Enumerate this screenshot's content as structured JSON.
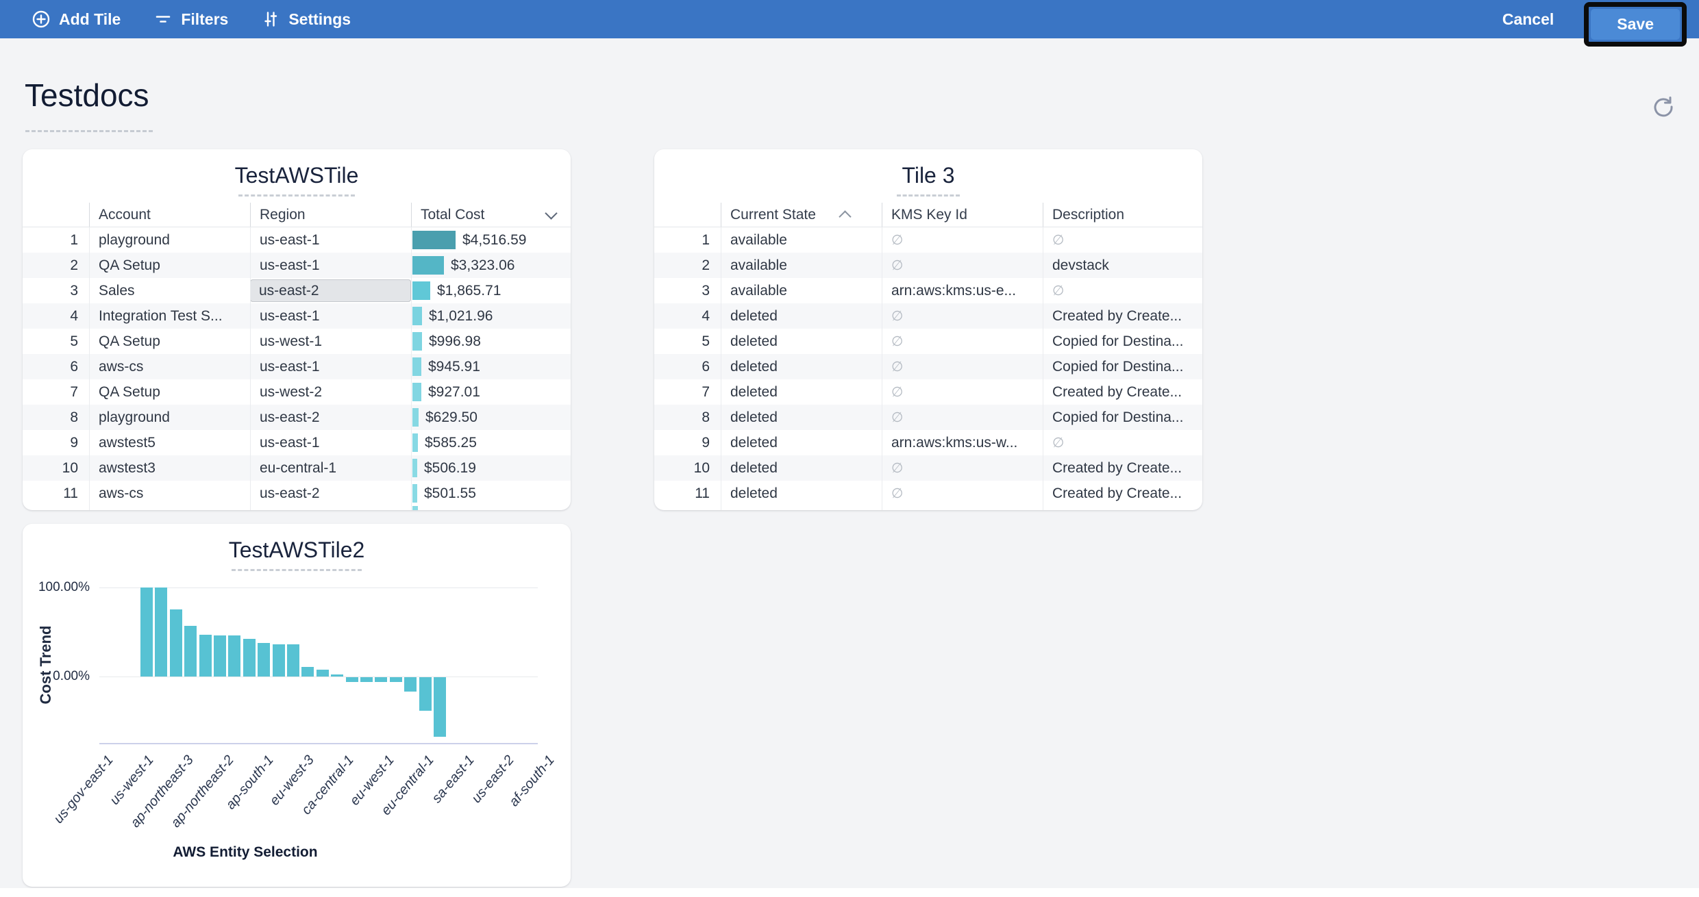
{
  "toolbar": {
    "add_tile": "Add Tile",
    "filters": "Filters",
    "settings": "Settings",
    "cancel": "Cancel",
    "save": "Save"
  },
  "page": {
    "title": "Testdocs"
  },
  "colors": {
    "topbar": "#3a75c4",
    "save_button": "#4b8ad6",
    "page_bg": "#f3f4f6",
    "chart_bar": "#57c2d3",
    "selected_cell_bg": "#e3e5e8"
  },
  "tiles": {
    "tile1": {
      "title": "TestAWSTile",
      "columns": [
        "Account",
        "Region",
        "Total Cost"
      ],
      "sort": {
        "column": "Total Cost",
        "direction": "desc"
      },
      "selected_cell": {
        "row": 3,
        "column": "Region",
        "value": "us-east-2"
      },
      "rows": [
        {
          "n": "1",
          "account": "playground",
          "region": "us-east-1",
          "cost": "$4,516.59",
          "value": 4516.59,
          "bar_color": "#4a9fae"
        },
        {
          "n": "2",
          "account": "QA Setup",
          "region": "us-east-1",
          "cost": "$3,323.06",
          "value": 3323.06,
          "bar_color": "#54b6c6"
        },
        {
          "n": "3",
          "account": "Sales",
          "region": "us-east-2",
          "cost": "$1,865.71",
          "value": 1865.71,
          "bar_color": "#60c8d7"
        },
        {
          "n": "4",
          "account": "Integration Test S...",
          "region": "us-east-1",
          "cost": "$1,021.96",
          "value": 1021.96,
          "bar_color": "#7ad3e0"
        },
        {
          "n": "5",
          "account": "QA Setup",
          "region": "us-west-1",
          "cost": "$996.98",
          "value": 996.98,
          "bar_color": "#7fd5e1"
        },
        {
          "n": "6",
          "account": "aws-cs",
          "region": "us-east-1",
          "cost": "$945.91",
          "value": 945.91,
          "bar_color": "#82d6e2"
        },
        {
          "n": "7",
          "account": "QA Setup",
          "region": "us-west-2",
          "cost": "$927.01",
          "value": 927.01,
          "bar_color": "#82d6e2"
        },
        {
          "n": "8",
          "account": "playground",
          "region": "us-east-2",
          "cost": "$629.50",
          "value": 629.5,
          "bar_color": "#86d8e3"
        },
        {
          "n": "9",
          "account": "awstest5",
          "region": "us-east-1",
          "cost": "$585.25",
          "value": 585.25,
          "bar_color": "#87d9e4"
        },
        {
          "n": "10",
          "account": "awstest3",
          "region": "eu-central-1",
          "cost": "$506.19",
          "value": 506.19,
          "bar_color": "#89dae4"
        },
        {
          "n": "11",
          "account": "aws-cs",
          "region": "us-east-2",
          "cost": "$501.55",
          "value": 501.55,
          "bar_color": "#89dae4"
        }
      ]
    },
    "tile2": {
      "title": "Tile 3",
      "columns": [
        "Current State",
        "KMS Key Id",
        "Description"
      ],
      "sort": {
        "column": "Current State",
        "direction": "asc"
      },
      "null_glyph": "∅",
      "rows": [
        {
          "n": "1",
          "state": "available",
          "kms": null,
          "desc": null
        },
        {
          "n": "2",
          "state": "available",
          "kms": null,
          "desc": "devstack"
        },
        {
          "n": "3",
          "state": "available",
          "kms": "arn:aws:kms:us-e...",
          "desc": null
        },
        {
          "n": "4",
          "state": "deleted",
          "kms": null,
          "desc": "Created by Create..."
        },
        {
          "n": "5",
          "state": "deleted",
          "kms": null,
          "desc": "Copied for Destina..."
        },
        {
          "n": "6",
          "state": "deleted",
          "kms": null,
          "desc": "Copied for Destina..."
        },
        {
          "n": "7",
          "state": "deleted",
          "kms": null,
          "desc": "Created by Create..."
        },
        {
          "n": "8",
          "state": "deleted",
          "kms": null,
          "desc": "Copied for Destina..."
        },
        {
          "n": "9",
          "state": "deleted",
          "kms": "arn:aws:kms:us-w...",
          "desc": null
        },
        {
          "n": "10",
          "state": "deleted",
          "kms": null,
          "desc": "Created by Create..."
        },
        {
          "n": "11",
          "state": "deleted",
          "kms": null,
          "desc": "Created by Create..."
        }
      ]
    }
  },
  "chart_data": {
    "type": "bar",
    "title": "TestAWSTile2",
    "xlabel": "AWS Entity Selection",
    "ylabel": "Cost Trend",
    "ytick_labels": [
      "100.00%",
      "0.00%"
    ],
    "ylim": [
      -72,
      115
    ],
    "grid": "horizontal",
    "legend": "none",
    "bar_color": "#57c2d3",
    "categories": [
      "us-gov-east-1",
      "us-west-1",
      "ap-northeast-3",
      "ap-northeast-2",
      "ap-south-1",
      "eu-west-3",
      "ca-central-1",
      "eu-west-1",
      "eu-central-1",
      "sa-east-1",
      "us-east-2",
      "af-south-1"
    ],
    "values_pct": [
      100,
      100,
      75,
      57,
      47,
      46,
      46,
      42,
      38,
      36,
      36,
      11,
      8,
      2,
      -5,
      -5,
      -5,
      -5,
      -16,
      -38,
      -67
    ]
  }
}
